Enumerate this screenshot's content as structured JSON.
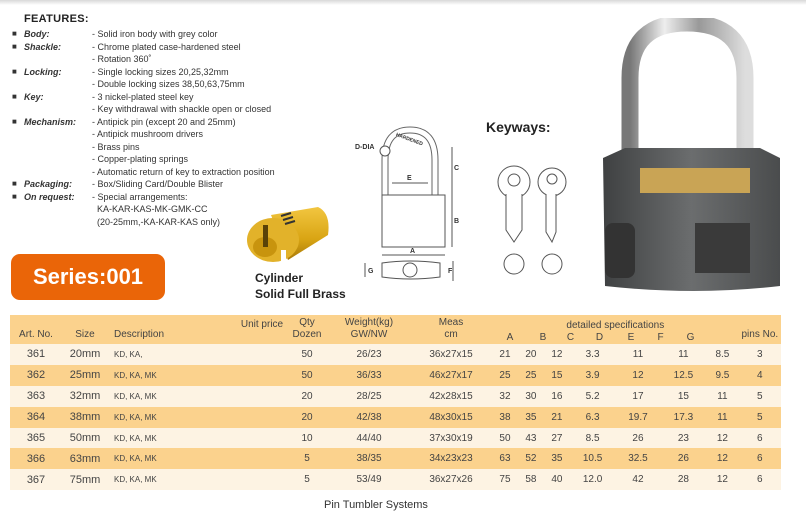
{
  "features": {
    "title": "FEATURES:",
    "rows": [
      {
        "label": "Body:",
        "value": "- Solid iron body with grey color"
      },
      {
        "label": "Shackle:",
        "value": "- Chrome plated case-hardened steel"
      },
      {
        "label": "",
        "value": "- Rotation 360˚"
      },
      {
        "label": "Locking:",
        "value": "- Single locking sizes 20,25,32mm"
      },
      {
        "label": "",
        "value": "- Double locking sizes 38,50,63,75mm"
      },
      {
        "label": "Key:",
        "value": "- 3 nickel-plated steel key"
      },
      {
        "label": "",
        "value": "- Key withdrawal with shackle open or closed"
      },
      {
        "label": "Mechanism:",
        "value": "- Antipick pin (except 20 and 25mm)"
      },
      {
        "label": "",
        "value": "- Antipick mushroom drivers"
      },
      {
        "label": "",
        "value": "- Brass pins"
      },
      {
        "label": "",
        "value": "- Copper-plating springs"
      },
      {
        "label": "",
        "value": "- Automatic return of key to extraction position"
      },
      {
        "label": "Packaging:",
        "value": "- Box/Sliding Card/Double Blister"
      },
      {
        "label": "On request:",
        "value": "- Special arrangements:"
      },
      {
        "label": "",
        "value": "  KA-KAR-KAS-MK-GMK-CC"
      },
      {
        "label": "",
        "value": "  (20-25mm,-KA-KAR-KAS only)"
      }
    ]
  },
  "series": "Series:001",
  "cylinder": {
    "line1": "Cylinder",
    "line2": "Solid Full Brass"
  },
  "diagram": {
    "ddia": "D-DIA",
    "hardened": "HARDENED",
    "a": "A",
    "b": "B",
    "c": "C",
    "e": "E",
    "f": "F",
    "g": "G"
  },
  "keyways": "Keyways:",
  "colors": {
    "accent": "#ea6508",
    "table_header": "#fbd28d",
    "row_light": "#fdf3e3"
  },
  "table": {
    "headers": {
      "art": "Art. No.",
      "size": "Size",
      "desc": "Description",
      "price": "Unit price",
      "qty1": "Qty",
      "qty2": "Dozen",
      "w1": "Weight(kg)",
      "w2": "GW/NW",
      "m1": "Meas",
      "m2": "cm",
      "spec": "detailed specifications",
      "a": "A",
      "b": "B",
      "c": "C",
      "d": "D",
      "e": "E",
      "f": "F",
      "g": "G",
      "pins": "pins No."
    },
    "rows": [
      [
        "361",
        "20mm",
        "KD, KA,",
        "",
        "50",
        "26/23",
        "36x27x15",
        "21",
        "20",
        "12",
        "3.3",
        "11",
        "11",
        "8.5",
        "3"
      ],
      [
        "362",
        "25mm",
        "KD, KA, MK",
        "",
        "50",
        "36/33",
        "46x27x17",
        "25",
        "25",
        "15",
        "3.9",
        "12",
        "12.5",
        "9.5",
        "4"
      ],
      [
        "363",
        "32mm",
        "KD, KA, MK",
        "",
        "20",
        "28/25",
        "42x28x15",
        "32",
        "30",
        "16",
        "5.2",
        "17",
        "15",
        "11",
        "5"
      ],
      [
        "364",
        "38mm",
        "KD, KA, MK",
        "",
        "20",
        "42/38",
        "48x30x15",
        "38",
        "35",
        "21",
        "6.3",
        "19.7",
        "17.3",
        "11",
        "5"
      ],
      [
        "365",
        "50mm",
        "KD, KA, MK",
        "",
        "10",
        "44/40",
        "37x30x19",
        "50",
        "43",
        "27",
        "8.5",
        "26",
        "23",
        "12",
        "6"
      ],
      [
        "366",
        "63mm",
        "KD, KA, MK",
        "",
        "5",
        "38/35",
        "34x23x23",
        "63",
        "52",
        "35",
        "10.5",
        "32.5",
        "26",
        "12",
        "6"
      ],
      [
        "367",
        "75mm",
        "KD, KA, MK",
        "",
        "5",
        "53/49",
        "36x27x26",
        "75",
        "58",
        "40",
        "12.0",
        "42",
        "28",
        "12",
        "6"
      ]
    ]
  },
  "footer": "Pin Tumbler Systems"
}
